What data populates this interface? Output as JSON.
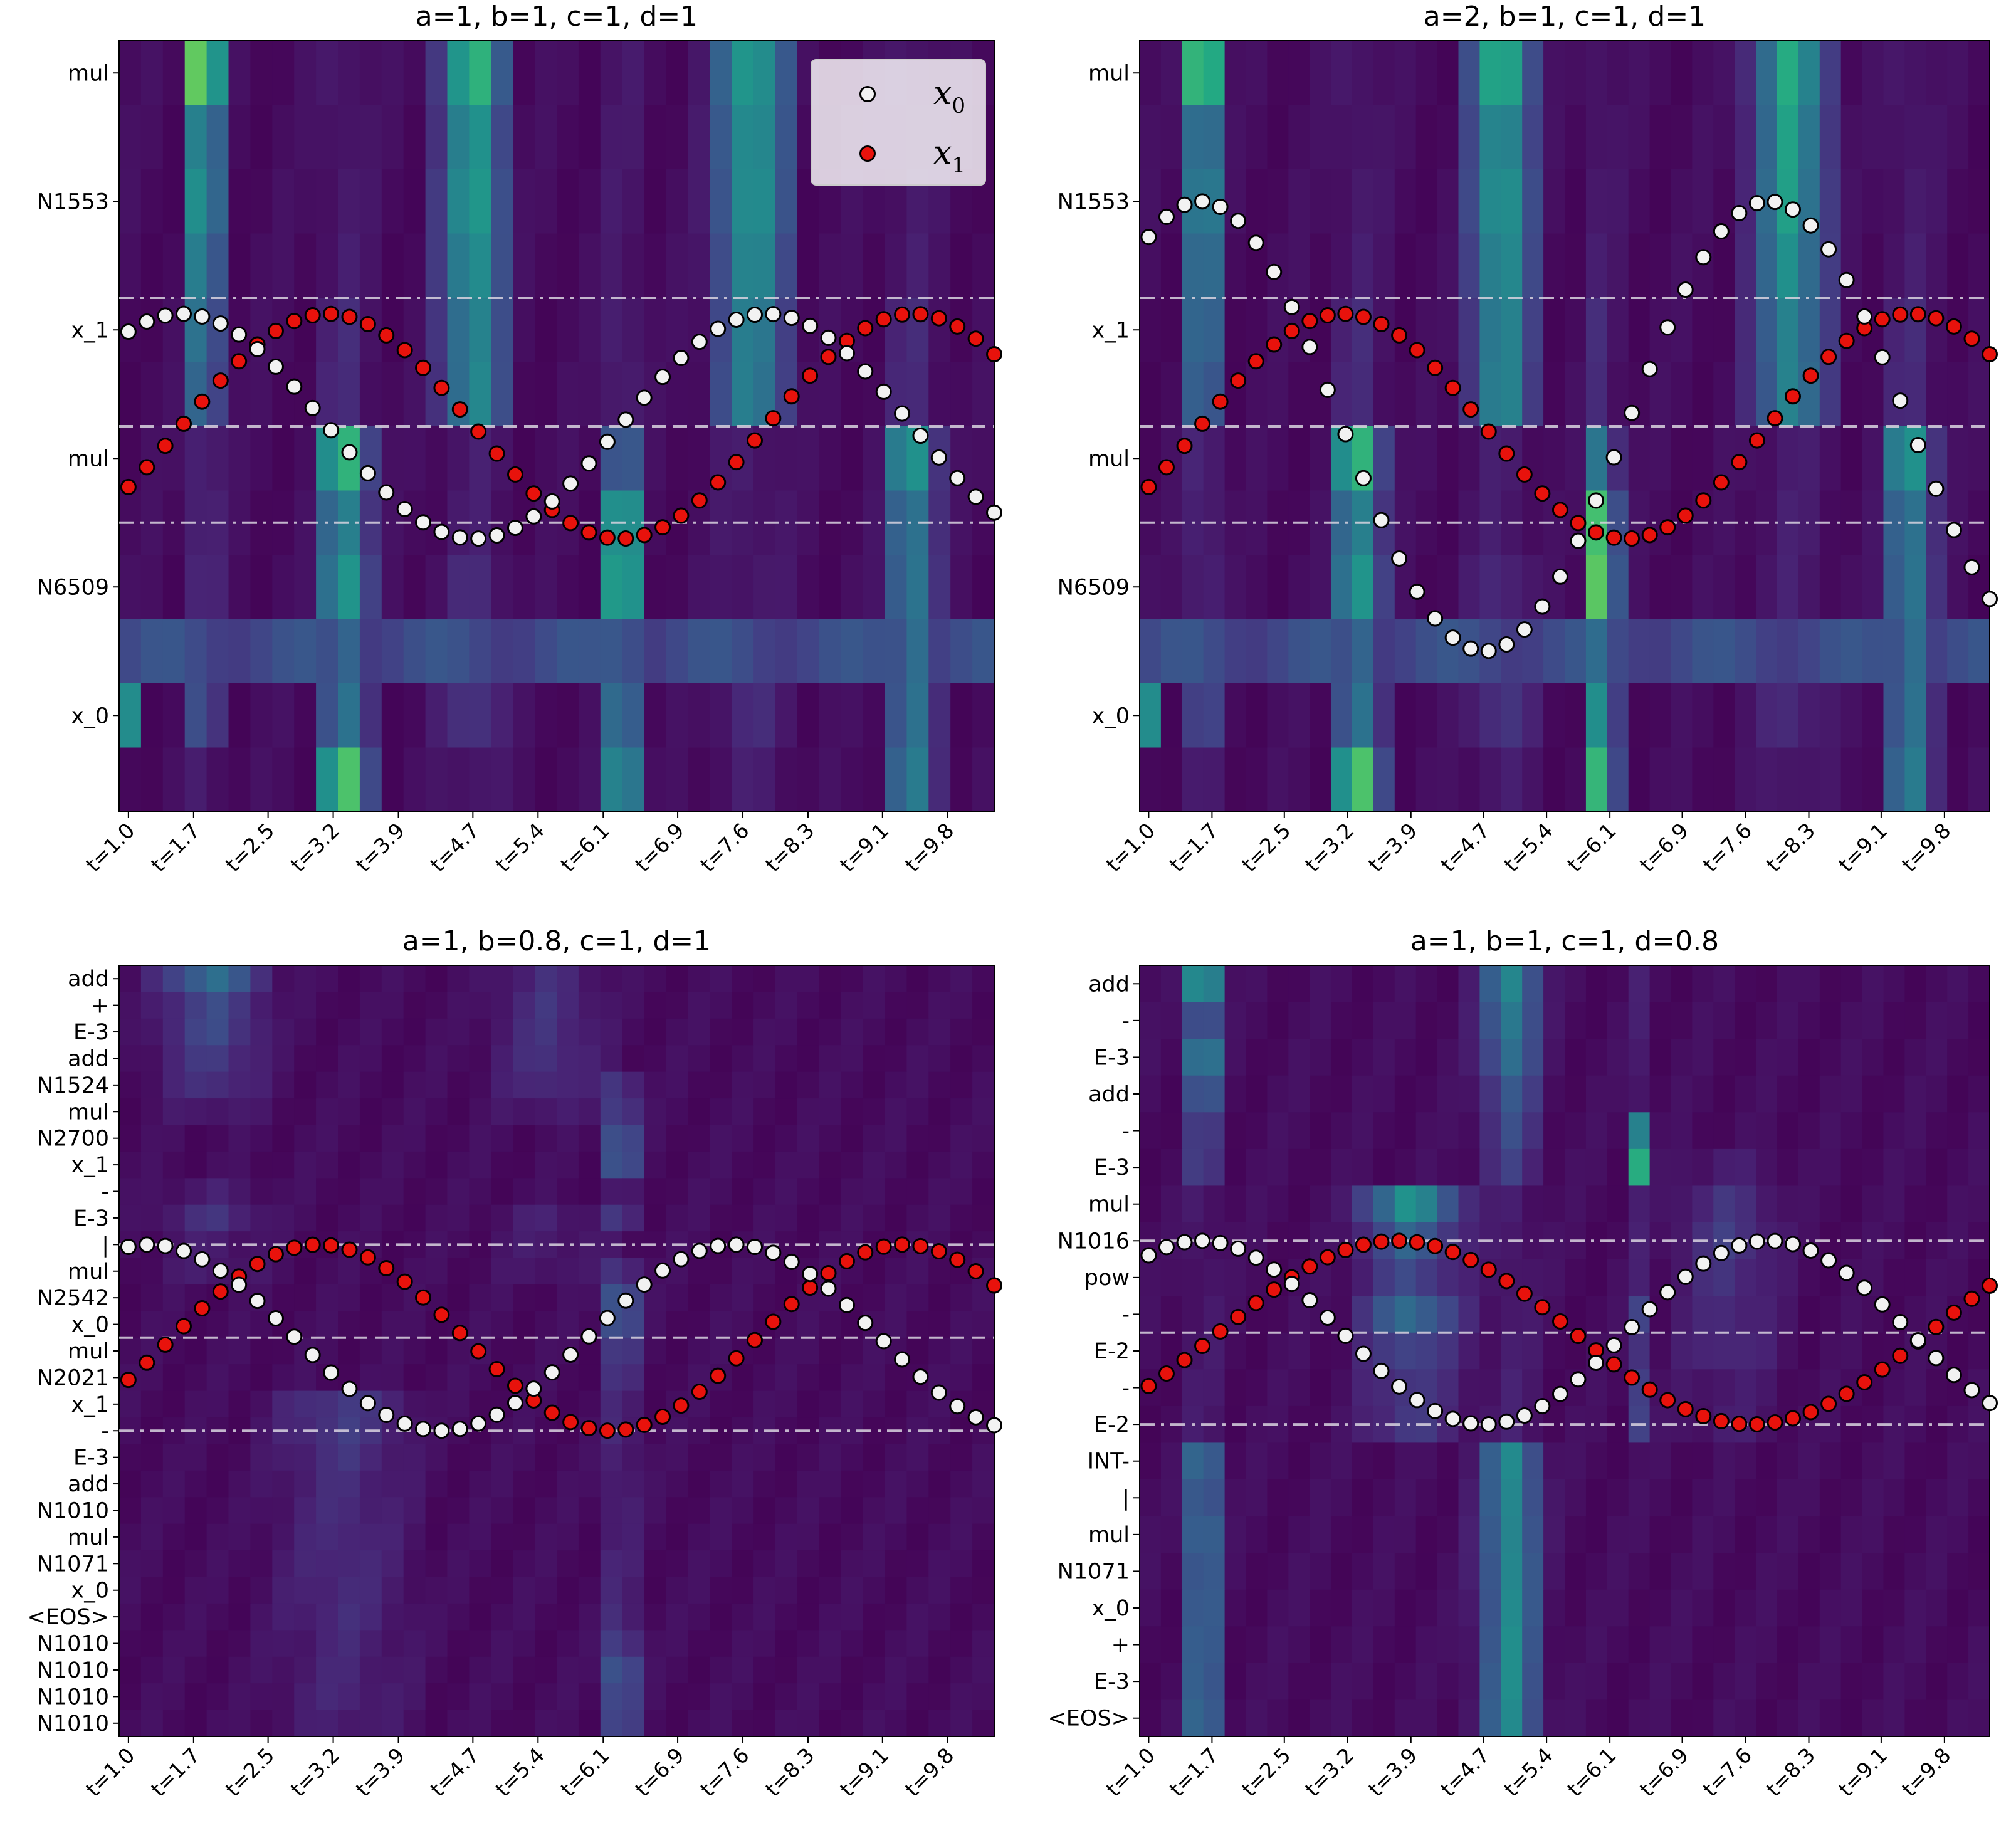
{
  "colors": {
    "x0_marker": "#f2f2f2",
    "x1_marker": "#e8120c",
    "marker_edge": "#000000",
    "guide_line": "#d9d4e0",
    "colormap": "viridis"
  },
  "legend": {
    "entries": [
      {
        "series": "x0",
        "label": "x",
        "sub": "0"
      },
      {
        "series": "x1",
        "label": "x",
        "sub": "1"
      }
    ]
  },
  "chart_data": [
    {
      "type": "heatmap",
      "title": "a=1, b=1, c=1, d=1",
      "params": {
        "a": 1,
        "b": 1,
        "c": 1,
        "d": 1
      },
      "x_tick_labels": [
        "t=1.0",
        "t=1.7",
        "t=2.5",
        "t=3.2",
        "t=3.9",
        "t=4.7",
        "t=5.4",
        "t=6.1",
        "t=6.9",
        "t=7.6",
        "t=8.3",
        "t=9.1",
        "t=9.8"
      ],
      "y_tick_labels": [
        "mul",
        "N1553",
        "x_1",
        "mul",
        "N6509",
        "x_0"
      ],
      "rows": 12,
      "label_every": 2,
      "hot_columns": [
        {
          "t": 1.8,
          "row_weights": [
            1.0,
            0.55,
            0.6,
            0.5,
            0.45,
            0.4,
            0.1,
            0.1,
            0.1,
            0.1,
            0.25,
            0.05
          ],
          "width": 0.3
        },
        {
          "t": 4.7,
          "row_weights": [
            0.7,
            0.55,
            0.6,
            0.55,
            0.5,
            0.5,
            0.05,
            0.05,
            0.1,
            0.1,
            0.15,
            0.05
          ],
          "width": 0.5
        },
        {
          "t": 7.7,
          "row_weights": [
            0.6,
            0.55,
            0.55,
            0.5,
            0.45,
            0.45,
            0.05,
            0.05,
            0.05,
            0.05,
            0.1,
            0.05
          ],
          "width": 0.6
        },
        {
          "t": 3.3,
          "row_weights": [
            0.05,
            0.05,
            0.05,
            0.05,
            0.1,
            0.1,
            0.75,
            0.5,
            0.6,
            0.35,
            0.4,
            0.8
          ],
          "width": 0.4
        },
        {
          "t": 6.3,
          "row_weights": [
            0.05,
            0.05,
            0.05,
            0.05,
            0.1,
            0.1,
            0.45,
            0.85,
            0.9,
            0.4,
            0.55,
            0.75
          ],
          "width": 0.25
        },
        {
          "t": 9.4,
          "row_weights": [
            0.05,
            0.05,
            0.05,
            0.05,
            0.1,
            0.1,
            0.6,
            0.45,
            0.45,
            0.4,
            0.4,
            0.45
          ],
          "width": 0.4
        },
        {
          "t": 1.0,
          "row_weights": [
            0,
            0,
            0,
            0,
            0,
            0,
            0,
            0,
            0,
            0,
            0.5,
            0
          ],
          "width": 0.15
        }
      ],
      "band_rows": [
        {
          "row": 9,
          "level": 0.22
        }
      ],
      "series": [
        {
          "name": "x0",
          "formula": "sin(a*t)",
          "amplitude": 1,
          "freq": 1
        },
        {
          "name": "x1",
          "formula": "sin(t - pi/2)",
          "amplitude": 1,
          "freq": 1
        }
      ],
      "guide_lines": [
        {
          "style": "dashdot",
          "row": 4
        },
        {
          "style": "dashed",
          "row": 6
        },
        {
          "style": "dashdot",
          "row": 7.5
        }
      ],
      "legend": true
    },
    {
      "type": "heatmap",
      "title": "a=2, b=1, c=1, d=1",
      "params": {
        "a": 2,
        "b": 1,
        "c": 1,
        "d": 1
      },
      "x_tick_labels": [
        "t=1.0",
        "t=1.7",
        "t=2.5",
        "t=3.2",
        "t=3.9",
        "t=4.7",
        "t=5.4",
        "t=6.1",
        "t=6.9",
        "t=7.6",
        "t=8.3",
        "t=9.1",
        "t=9.8"
      ],
      "y_tick_labels": [
        "mul",
        "N1553",
        "x_1",
        "mul",
        "N6509",
        "x_0"
      ],
      "rows": 12,
      "label_every": 2,
      "hot_columns": [
        {
          "t": 1.6,
          "row_weights": [
            1.0,
            0.55,
            0.6,
            0.5,
            0.45,
            0.4,
            0.1,
            0.1,
            0.1,
            0.1,
            0.25,
            0.05
          ],
          "width": 0.3
        },
        {
          "t": 4.9,
          "row_weights": [
            0.7,
            0.55,
            0.6,
            0.55,
            0.5,
            0.5,
            0.05,
            0.05,
            0.1,
            0.1,
            0.15,
            0.05
          ],
          "width": 0.5
        },
        {
          "t": 8.1,
          "row_weights": [
            0.6,
            0.55,
            0.55,
            0.5,
            0.45,
            0.45,
            0.05,
            0.05,
            0.05,
            0.05,
            0.1,
            0.05
          ],
          "width": 0.6
        },
        {
          "t": 3.3,
          "row_weights": [
            0.05,
            0.05,
            0.05,
            0.05,
            0.1,
            0.1,
            0.75,
            0.5,
            0.6,
            0.35,
            0.4,
            0.8
          ],
          "width": 0.4
        },
        {
          "t": 6.0,
          "row_weights": [
            0.05,
            0.05,
            0.05,
            0.05,
            0.1,
            0.1,
            0.45,
            0.85,
            0.9,
            0.4,
            0.55,
            0.75
          ],
          "width": 0.25
        },
        {
          "t": 9.4,
          "row_weights": [
            0.05,
            0.05,
            0.05,
            0.05,
            0.1,
            0.1,
            0.6,
            0.45,
            0.45,
            0.4,
            0.4,
            0.45
          ],
          "width": 0.4
        },
        {
          "t": 1.0,
          "row_weights": [
            0,
            0,
            0,
            0,
            0,
            0,
            0,
            0,
            0,
            0,
            0.5,
            0
          ],
          "width": 0.15
        }
      ],
      "band_rows": [
        {
          "row": 9,
          "level": 0.22
        }
      ],
      "series": [
        {
          "name": "x0",
          "formula": "2*sin(t)",
          "amplitude": 2,
          "freq": 1
        },
        {
          "name": "x1",
          "formula": "sin(t - pi/2)",
          "amplitude": 1,
          "freq": 1
        }
      ],
      "guide_lines": [
        {
          "style": "dashdot",
          "row": 4
        },
        {
          "style": "dashed",
          "row": 6
        },
        {
          "style": "dashdot",
          "row": 7.5
        }
      ],
      "legend": false
    },
    {
      "type": "heatmap",
      "title": "a=1, b=0.8, c=1, d=1",
      "params": {
        "a": 1,
        "b": 0.8,
        "c": 1,
        "d": 1
      },
      "x_tick_labels": [
        "t=1.0",
        "t=1.7",
        "t=2.5",
        "t=3.2",
        "t=3.9",
        "t=4.7",
        "t=5.4",
        "t=6.1",
        "t=6.9",
        "t=7.6",
        "t=8.3",
        "t=9.1",
        "t=9.8"
      ],
      "y_tick_labels": [
        "add",
        "+",
        "E-3",
        "add",
        "N1524",
        "mul",
        "N2700",
        "x_1",
        "-",
        "E-3",
        "|",
        "mul",
        "N2542",
        "x_0",
        "mul",
        "N2021",
        "x_1",
        "-",
        "E-3",
        "add",
        "N1010",
        "mul",
        "N1071",
        "x_0",
        "<EOS>",
        "N1010",
        "N1010",
        "N1010",
        "N1010"
      ],
      "rows": 29,
      "label_every": 1,
      "hot_columns": [
        {
          "t": 6.3,
          "row_weights": [
            0,
            0,
            0,
            0,
            0.45,
            0.6,
            0.9,
            0.9,
            0.1,
            0.4,
            0.05,
            0.45,
            0.95,
            0.9,
            0.55,
            0.4,
            0.25,
            0.3,
            0.25,
            0.25,
            0.25,
            0.2,
            0.25,
            0.25,
            0.35,
            0.6,
            0.95,
            0.8,
            0.7
          ],
          "width": 0.15
        },
        {
          "t": 1.9,
          "row_weights": [
            0.35,
            0.2,
            0.2,
            0.15,
            0.12,
            0.05,
            0,
            0,
            0.05,
            0.12,
            0.05,
            0.05,
            0,
            0,
            0,
            0,
            0,
            0,
            0,
            0,
            0,
            0,
            0,
            0,
            0,
            0,
            0,
            0,
            0
          ],
          "width": 0.8
        },
        {
          "t": 3.3,
          "row_weights": [
            0,
            0,
            0,
            0,
            0,
            0,
            0,
            0,
            0,
            0,
            0,
            0,
            0,
            0,
            0,
            0,
            0.15,
            0.15,
            0.12,
            0.1,
            0.1,
            0.1,
            0.1,
            0.1,
            0.1,
            0.08,
            0.08,
            0.08,
            0.06
          ],
          "width": 1.0
        },
        {
          "t": 5.5,
          "row_weights": [
            0.1,
            0.12,
            0.12,
            0.12,
            0.1,
            0.05,
            0,
            0,
            0,
            0.06,
            0.05,
            0.04,
            0,
            0,
            0,
            0,
            0,
            0,
            0,
            0,
            0,
            0,
            0,
            0,
            0,
            0,
            0,
            0,
            0
          ],
          "width": 0.8
        }
      ],
      "band_rows": [],
      "series": [
        {
          "name": "x0",
          "formula": "sin(0.8*t)-ish",
          "amplitude": 1,
          "freq": 1
        },
        {
          "name": "x1",
          "formula": "sin(t - pi/2)",
          "amplitude": 1,
          "freq": 1
        }
      ],
      "guide_lines": [
        {
          "style": "dashdot",
          "row": 10.5
        },
        {
          "style": "dashed",
          "row": 14
        },
        {
          "style": "dashdot",
          "row": 17.5
        }
      ],
      "legend": false
    },
    {
      "type": "heatmap",
      "title": "a=1, b=1, c=1, d=0.8",
      "params": {
        "a": 1,
        "b": 1,
        "c": 1,
        "d": 0.8
      },
      "x_tick_labels": [
        "t=1.0",
        "t=1.7",
        "t=2.5",
        "t=3.2",
        "t=3.9",
        "t=4.7",
        "t=5.4",
        "t=6.1",
        "t=6.9",
        "t=7.6",
        "t=8.3",
        "t=9.1",
        "t=9.8"
      ],
      "y_tick_labels": [
        "add",
        "-",
        "E-3",
        "add",
        "-",
        "E-3",
        "mul",
        "N1016",
        "pow",
        "-",
        "E-2",
        "-",
        "E-2",
        "INT-",
        "|",
        "mul",
        "N1071",
        "x_0",
        "+",
        "E-3",
        "<EOS>"
      ],
      "rows": 21,
      "label_every": 1,
      "hot_columns": [
        {
          "t": 1.6,
          "row_weights": [
            0.7,
            0.35,
            0.55,
            0.35,
            0.2,
            0.2,
            0.05,
            0.05,
            0.05,
            0.05,
            0.05,
            0.05,
            0.05,
            0.45,
            0.4,
            0.45,
            0.4,
            0.4,
            0.4,
            0.4,
            0.45
          ],
          "width": 0.3
        },
        {
          "t": 5.0,
          "row_weights": [
            0.45,
            0.4,
            0.35,
            0.25,
            0.2,
            0.15,
            0.05,
            0.05,
            0.05,
            0.05,
            0.05,
            0.05,
            0.05,
            0.45,
            0.45,
            0.45,
            0.45,
            0.45,
            0.45,
            0.45,
            0.45
          ],
          "width": 0.5
        },
        {
          "t": 6.4,
          "row_weights": [
            0.05,
            0.05,
            0.05,
            0.05,
            0.5,
            0.7,
            0.05,
            0.05,
            0.05,
            0.2,
            0.15,
            0.2,
            0.2,
            0,
            0,
            0,
            0,
            0,
            0,
            0,
            0
          ],
          "width": 0.15
        },
        {
          "t": 3.9,
          "row_weights": [
            0,
            0,
            0,
            0,
            0,
            0,
            0.5,
            0.3,
            0.2,
            0.35,
            0.2,
            0.15,
            0.15,
            0,
            0,
            0,
            0,
            0,
            0,
            0,
            0
          ],
          "width": 0.8
        },
        {
          "t": 7.4,
          "row_weights": [
            0,
            0,
            0,
            0,
            0,
            0.05,
            0.12,
            0.15,
            0.12,
            0.1,
            0.1,
            0.05,
            0.05,
            0,
            0,
            0,
            0,
            0,
            0,
            0,
            0
          ],
          "width": 0.8
        }
      ],
      "band_rows": [],
      "series": [
        {
          "name": "x0",
          "formula": "sin(t)",
          "amplitude": 1,
          "freq": 1
        },
        {
          "name": "x1",
          "formula": "sin(0.8*t - pi/2)",
          "amplitude": 1,
          "freq": 0.8
        }
      ],
      "guide_lines": [
        {
          "style": "dashdot",
          "row": 7.5
        },
        {
          "style": "dashed",
          "row": 10
        },
        {
          "style": "dashdot",
          "row": 12.5
        }
      ],
      "legend": false
    }
  ]
}
